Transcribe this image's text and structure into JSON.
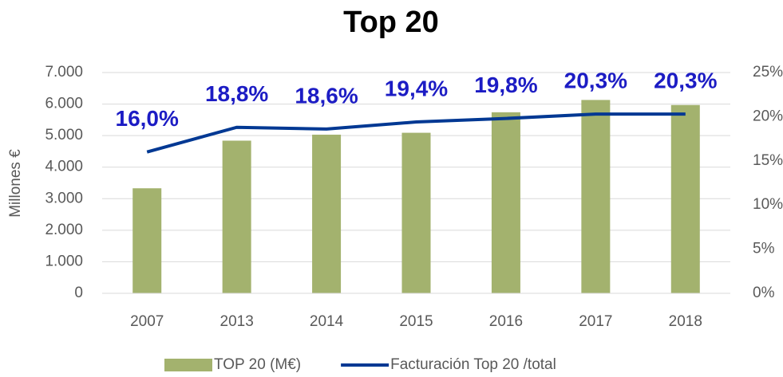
{
  "chart_data": {
    "type": "bar-line",
    "title": "Top 20",
    "y_label": "Millones €",
    "categories": [
      "2007",
      "2013",
      "2014",
      "2015",
      "2016",
      "2017",
      "2018"
    ],
    "series": [
      {
        "name": "TOP 20 (M€)",
        "type": "bar",
        "color": "#a3b26e",
        "values": [
          3330,
          4840,
          5030,
          5090,
          5740,
          6130,
          5970
        ]
      },
      {
        "name": "Facturación Top 20 /total",
        "type": "line",
        "axis": "y2",
        "color": "#003893",
        "label_color": "#1c1cc4",
        "values": [
          16.0,
          18.8,
          18.6,
          19.4,
          19.8,
          20.3,
          20.3
        ],
        "value_labels": [
          "16,0%",
          "18,8%",
          "18,6%",
          "19,4%",
          "19,8%",
          "20,3%",
          "20,3%"
        ]
      }
    ],
    "ylim": [
      0,
      7000
    ],
    "yticks": [
      0,
      {
        "value": 1000,
        "label": "1.000"
      },
      {
        "value": 2000,
        "label": "2.000"
      },
      {
        "value": 3000,
        "label": "3.000"
      },
      {
        "value": 4000,
        "label": "4.000"
      },
      {
        "value": 5000,
        "label": "5.000"
      },
      {
        "value": 6000,
        "label": "6.000"
      },
      {
        "value": 7000,
        "label": "7.000"
      }
    ],
    "y2lim": [
      0,
      25
    ],
    "y2ticks": [
      {
        "value": 0,
        "label": "0%"
      },
      {
        "value": 5,
        "label": "5%"
      },
      {
        "value": 10,
        "label": "10%"
      },
      {
        "value": 15,
        "label": "15%"
      },
      {
        "value": 20,
        "label": "20%"
      },
      {
        "value": 25,
        "label": "25%"
      }
    ],
    "grid": true,
    "legend": "bottom"
  }
}
